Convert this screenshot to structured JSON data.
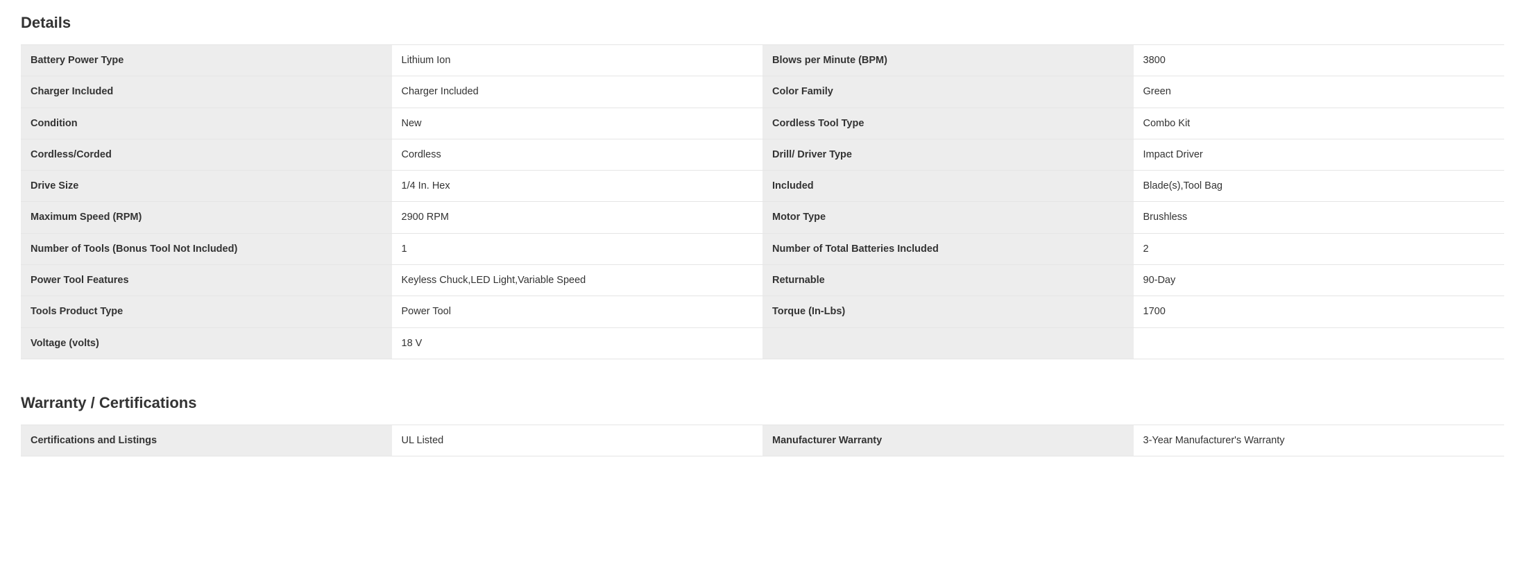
{
  "sections": {
    "details": {
      "title": "Details",
      "rows": [
        {
          "l1": "Battery Power Type",
          "v1": "Lithium Ion",
          "l2": "Blows per Minute (BPM)",
          "v2": "3800"
        },
        {
          "l1": "Charger Included",
          "v1": "Charger Included",
          "l2": "Color Family",
          "v2": "Green"
        },
        {
          "l1": "Condition",
          "v1": "New",
          "l2": "Cordless Tool Type",
          "v2": "Combo Kit"
        },
        {
          "l1": "Cordless/Corded",
          "v1": "Cordless",
          "l2": "Drill/ Driver Type",
          "v2": "Impact Driver"
        },
        {
          "l1": "Drive Size",
          "v1": "1/4 In. Hex",
          "l2": "Included",
          "v2": "Blade(s),Tool Bag"
        },
        {
          "l1": "Maximum Speed (RPM)",
          "v1": "2900 RPM",
          "l2": "Motor Type",
          "v2": "Brushless"
        },
        {
          "l1": "Number of Tools (Bonus Tool Not Included)",
          "v1": "1",
          "l2": "Number of Total Batteries Included",
          "v2": "2"
        },
        {
          "l1": "Power Tool Features",
          "v1": "Keyless Chuck,LED Light,Variable Speed",
          "l2": "Returnable",
          "v2": "90-Day"
        },
        {
          "l1": "Tools Product Type",
          "v1": "Power Tool",
          "l2": "Torque (In-Lbs)",
          "v2": "1700"
        },
        {
          "l1": "Voltage (volts)",
          "v1": "18 V",
          "l2": "",
          "v2": ""
        }
      ]
    },
    "warranty": {
      "title": "Warranty / Certifications",
      "rows": [
        {
          "l1": "Certifications and Listings",
          "v1": "UL Listed",
          "l2": "Manufacturer Warranty",
          "v2": "3-Year Manufacturer's Warranty"
        }
      ]
    }
  },
  "styling": {
    "label_bg": "#ededed",
    "value_bg": "#ffffff",
    "border_color": "#e5e5e5",
    "text_color": "#333333",
    "title_fontsize": 22,
    "cell_fontsize": 14.5,
    "font_family": "Helvetica Neue"
  }
}
